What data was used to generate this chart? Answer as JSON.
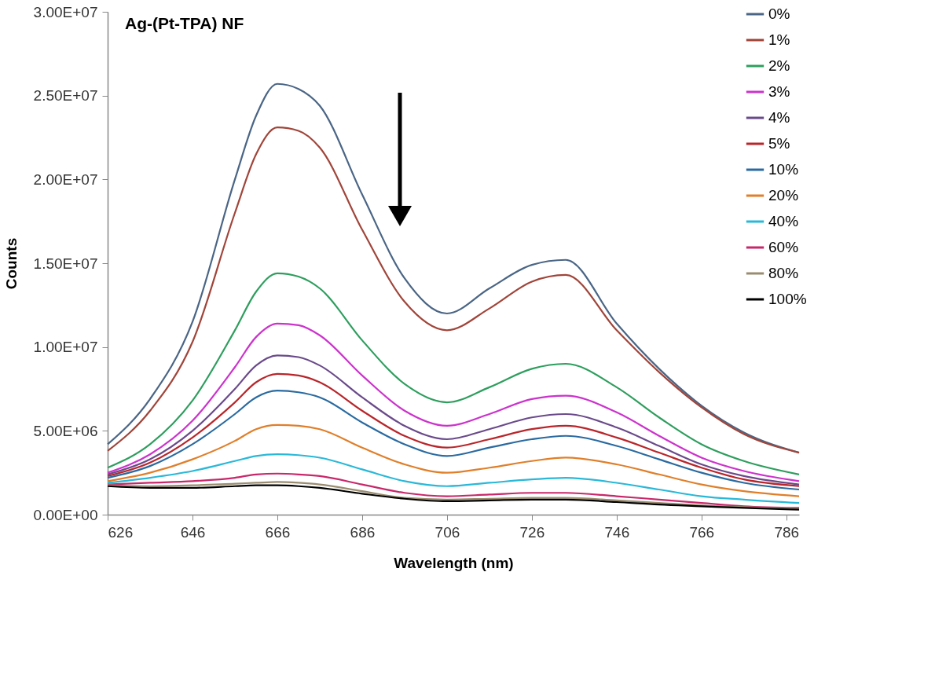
{
  "chart_data": {
    "type": "line",
    "title": "Ag-(Pt-TPA) NF",
    "xlabel": "Wavelength (nm)",
    "ylabel": "Counts",
    "x": [
      626,
      636,
      646,
      656,
      661,
      666,
      671,
      676,
      686,
      696,
      706,
      716,
      726,
      734,
      746,
      756,
      766,
      776,
      789
    ],
    "xlim": [
      626,
      789
    ],
    "xticks": [
      626,
      646,
      666,
      686,
      706,
      726,
      746,
      766,
      786
    ],
    "ylim": [
      0,
      30000000.0
    ],
    "yticks": [
      {
        "value": 0,
        "label": "0.00E+00"
      },
      {
        "value": 5000000.0,
        "label": "5.00E+06"
      },
      {
        "value": 10000000.0,
        "label": "1.00E+07"
      },
      {
        "value": 15000000.0,
        "label": "1.50E+07"
      },
      {
        "value": 20000000.0,
        "label": "2.00E+07"
      },
      {
        "value": 25000000.0,
        "label": "2.50E+07"
      },
      {
        "value": 30000000.0,
        "label": "3.00E+07"
      }
    ],
    "grid": false,
    "legend": "top right",
    "marker": "none",
    "line_style": "solid",
    "series": [
      {
        "name": "0%",
        "color": "#4a6585",
        "values": [
          4200000.0,
          6900000.0,
          11500000.0,
          20000000.0,
          23800000.0,
          25700000.0,
          25400000.0,
          24400000.0,
          19100000.0,
          14100000.0,
          12000000.0,
          13500000.0,
          14900000.0,
          15200000.0,
          11400000.0,
          8700000.0,
          6500000.0,
          4900000.0,
          3700000.0
        ]
      },
      {
        "name": "1%",
        "color": "#a0453a",
        "values": [
          3800000.0,
          6200000.0,
          10300000.0,
          18000000.0,
          21500000.0,
          23100000.0,
          22900000.0,
          21900000.0,
          17000000.0,
          12700000.0,
          11000000.0,
          12300000.0,
          13900000.0,
          14300000.0,
          11000000.0,
          8500000.0,
          6400000.0,
          4800000.0,
          3700000.0
        ]
      },
      {
        "name": "2%",
        "color": "#2e9e5e",
        "values": [
          2800000.0,
          4200000.0,
          6800000.0,
          11000000.0,
          13300000.0,
          14400000.0,
          14200000.0,
          13500000.0,
          10400000.0,
          7800000.0,
          6700000.0,
          7600000.0,
          8700000.0,
          9000000.0,
          7600000.0,
          5800000.0,
          4200000.0,
          3200000.0,
          2400000.0
        ]
      },
      {
        "name": "3%",
        "color": "#cc33cc",
        "values": [
          2500000.0,
          3600000.0,
          5600000.0,
          8800000.0,
          10600000.0,
          11400000.0,
          11300000.0,
          10700000.0,
          8300000.0,
          6200000.0,
          5300000.0,
          6000000.0,
          6900000.0,
          7100000.0,
          6100000.0,
          4700000.0,
          3400000.0,
          2600000.0,
          2000000.0
        ]
      },
      {
        "name": "4%",
        "color": "#6a4a8a",
        "values": [
          2400000.0,
          3300000.0,
          5000000.0,
          7500000.0,
          8900000.0,
          9500000.0,
          9400000.0,
          8900000.0,
          7000000.0,
          5300000.0,
          4500000.0,
          5100000.0,
          5800000.0,
          6000000.0,
          5200000.0,
          4100000.0,
          3000000.0,
          2300000.0,
          1800000.0
        ]
      },
      {
        "name": "5%",
        "color": "#b8262b",
        "values": [
          2300000.0,
          3100000.0,
          4600000.0,
          6700000.0,
          7900000.0,
          8400000.0,
          8300000.0,
          7900000.0,
          6200000.0,
          4700000.0,
          4000000.0,
          4500000.0,
          5100000.0,
          5300000.0,
          4600000.0,
          3700000.0,
          2800000.0,
          2100000.0,
          1700000.0
        ]
      },
      {
        "name": "10%",
        "color": "#2a6aa0",
        "values": [
          2200000.0,
          2900000.0,
          4200000.0,
          6000000.0,
          7000000.0,
          7400000.0,
          7300000.0,
          7000000.0,
          5500000.0,
          4200000.0,
          3500000.0,
          4000000.0,
          4500000.0,
          4700000.0,
          4100000.0,
          3300000.0,
          2500000.0,
          1900000.0,
          1500000.0
        ]
      },
      {
        "name": "20%",
        "color": "#e07f2a",
        "values": [
          2000000.0,
          2500000.0,
          3300000.0,
          4400000.0,
          5100000.0,
          5350000.0,
          5300000.0,
          5100000.0,
          4000000.0,
          3000000.0,
          2500000.0,
          2800000.0,
          3200000.0,
          3400000.0,
          3000000.0,
          2400000.0,
          1800000.0,
          1400000.0,
          1100000.0
        ]
      },
      {
        "name": "40%",
        "color": "#2ab8d8",
        "values": [
          1900000.0,
          2200000.0,
          2600000.0,
          3200000.0,
          3500000.0,
          3600000.0,
          3550000.0,
          3400000.0,
          2700000.0,
          2000000.0,
          1700000.0,
          1900000.0,
          2100000.0,
          2200000.0,
          1900000.0,
          1500000.0,
          1100000.0,
          900000.0,
          700000.0
        ]
      },
      {
        "name": "60%",
        "color": "#c8286a",
        "values": [
          1800000.0,
          1900000.0,
          2000000.0,
          2200000.0,
          2400000.0,
          2450000.0,
          2400000.0,
          2300000.0,
          1800000.0,
          1300000.0,
          1100000.0,
          1200000.0,
          1300000.0,
          1300000.0,
          1100000.0,
          900000.0,
          700000.0,
          500000.0,
          400000.0
        ]
      },
      {
        "name": "80%",
        "color": "#9a8c70",
        "values": [
          1750000.0,
          1700000.0,
          1750000.0,
          1850000.0,
          1900000.0,
          1950000.0,
          1900000.0,
          1800000.0,
          1400000.0,
          1000000.0,
          900000.0,
          950000.0,
          1000000.0,
          1000000.0,
          850000.0,
          700000.0,
          550000.0,
          450000.0,
          350000.0
        ]
      },
      {
        "name": "100%",
        "color": "#000000",
        "values": [
          1700000.0,
          1600000.0,
          1600000.0,
          1700000.0,
          1750000.0,
          1750000.0,
          1700000.0,
          1600000.0,
          1250000.0,
          950000.0,
          800000.0,
          850000.0,
          900000.0,
          900000.0,
          750000.0,
          600000.0,
          500000.0,
          400000.0,
          300000.0
        ]
      }
    ]
  }
}
